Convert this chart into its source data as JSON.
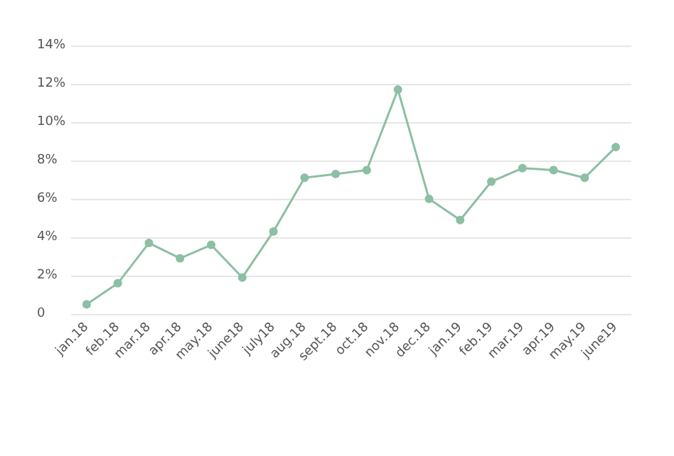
{
  "chart_data": {
    "type": "line",
    "categories": [
      "jan.18",
      "feb.18",
      "mar.18",
      "apr.18",
      "may.18",
      "june18",
      "july18",
      "aug.18",
      "sept.18",
      "oct.18",
      "nov.18",
      "dec.18",
      "jan.19",
      "feb.19",
      "mar.19",
      "apr.19",
      "may.19",
      "june19"
    ],
    "series": [
      {
        "color": "#8cbfa3",
        "values": [
          0.5,
          1.6,
          3.7,
          2.9,
          3.6,
          1.9,
          4.3,
          7.1,
          7.3,
          7.5,
          11.7,
          6.0,
          4.9,
          6.9,
          7.6,
          7.5,
          7.1,
          8.7
        ]
      }
    ],
    "ylim": [
      0,
      14
    ],
    "yticks": [
      0,
      {
        "value": 2,
        "label": "2%"
      },
      {
        "value": 4,
        "label": "4%"
      },
      {
        "value": 6,
        "label": "6%"
      },
      {
        "value": 8,
        "label": "8%"
      },
      {
        "value": 10,
        "label": "10%"
      },
      {
        "value": 12,
        "label": "12%"
      },
      {
        "value": 14,
        "label": "14%"
      }
    ],
    "grid": "y",
    "marker": "circle",
    "line_style": "solid"
  }
}
